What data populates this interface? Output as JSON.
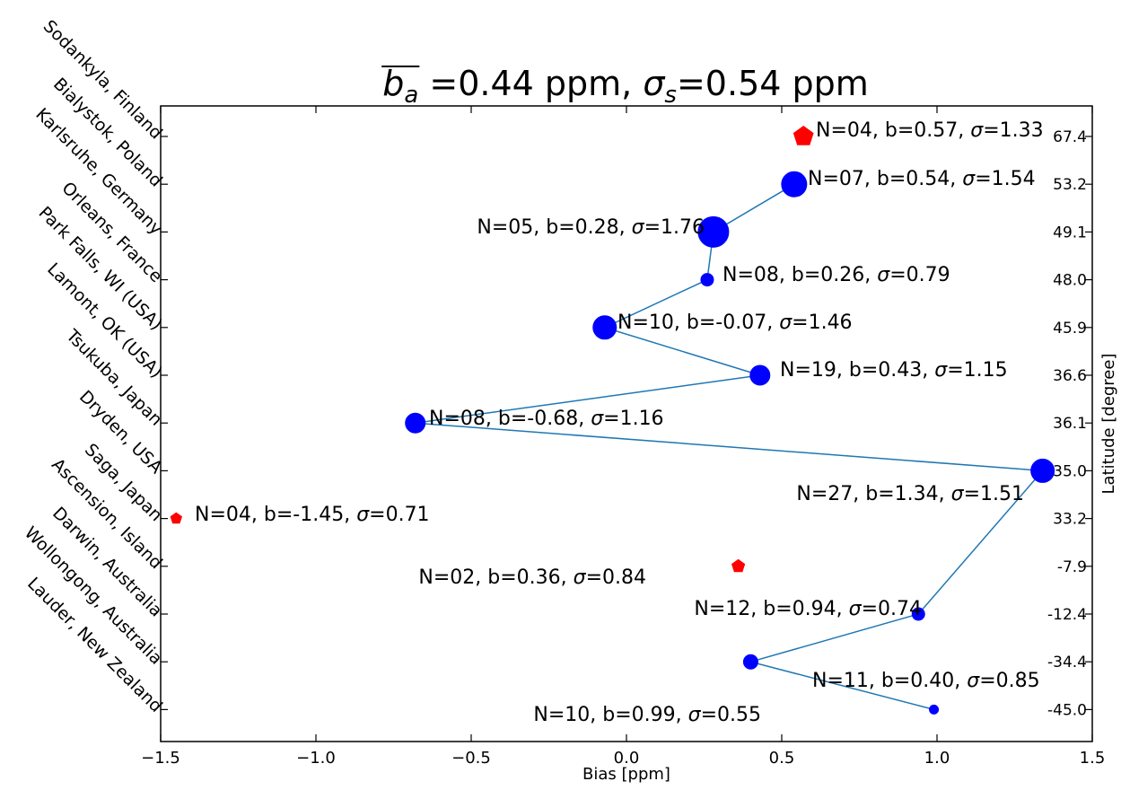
{
  "chart_data": {
    "type": "scatter",
    "title_prefix": "b",
    "title_subscript": "a",
    "title_mid": " =0.44 ppm, ",
    "title_sigma": "σ",
    "title_sigma_subscript": "s",
    "title_suffix": "=0.54 ppm",
    "xlabel": "Bias [ppm]",
    "ylabel": "Latitude [degree]",
    "xlim": [
      -1.5,
      1.5
    ],
    "x_ticks": [
      "−1.5",
      "−1.0",
      "−0.5",
      "0.0",
      "0.5",
      "1.0",
      "1.5"
    ],
    "x_tick_values": [
      -1.5,
      -1.0,
      -0.5,
      0.0,
      0.5,
      1.0,
      1.5
    ],
    "latitude_ticks": [
      "67.4",
      "53.2",
      "49.1",
      "48.0",
      "45.9",
      "36.6",
      "36.1",
      "35.0",
      "33.2",
      "-7.9",
      "-12.4",
      "-34.4",
      "-45.0"
    ],
    "site_labels": [
      "Sodankyla, Finland",
      "Bialystok, Poland",
      "Karlsruhe, Germany",
      "Orleans, France",
      "Park Falls, WI (USA)",
      "Lamont, OK (USA)",
      "Tsukuba, Japan",
      "Dryden, USA",
      "Saga, Japan",
      "Ascension, Island",
      "Darwin, Australia",
      "Wollongong, Australia",
      "Lauder, New Zealand"
    ],
    "colors": {
      "included": "#0000ff",
      "excluded": "#ff0000",
      "line": "#1f77b4"
    },
    "series": [
      {
        "marker": "circle",
        "color": "#0000ff",
        "connected": true,
        "points": [
          {
            "site": "Bialystok, Poland",
            "latitude": "53.2",
            "bias": 0.54,
            "label": "N=07, b=0.54, ",
            "sigma": "=1.54"
          },
          {
            "site": "Karlsruhe, Germany",
            "latitude": "49.1",
            "bias": 0.28,
            "label": "N=05, b=0.28, ",
            "sigma": "=1.76"
          },
          {
            "site": "Orleans, France",
            "latitude": "48.0",
            "bias": 0.26,
            "label": "N=08, b=0.26, ",
            "sigma": "=0.79"
          },
          {
            "site": "Park Falls, WI (USA)",
            "latitude": "45.9",
            "bias": -0.07,
            "label": "N=10, b=-0.07, ",
            "sigma": "=1.46"
          },
          {
            "site": "Lamont, OK (USA)",
            "latitude": "36.6",
            "bias": 0.43,
            "label": "N=19, b=0.43, ",
            "sigma": "=1.15"
          },
          {
            "site": "Tsukuba, Japan",
            "latitude": "36.1",
            "bias": -0.68,
            "label": "N=08, b=-0.68, ",
            "sigma": "=1.16"
          },
          {
            "site": "Dryden, USA",
            "latitude": "35.0",
            "bias": 1.34,
            "label": "N=27, b=1.34, ",
            "sigma": "=1.51"
          },
          {
            "site": "Darwin, Australia",
            "latitude": "-12.4",
            "bias": 0.94,
            "label": "N=12, b=0.94, ",
            "sigma": "=0.74"
          },
          {
            "site": "Wollongong, Australia",
            "latitude": "-34.4",
            "bias": 0.4,
            "label": "N=11, b=0.40, ",
            "sigma": "=0.85"
          },
          {
            "site": "Lauder, New Zealand",
            "latitude": "-45.0",
            "bias": 0.99,
            "label": "N=10, b=0.99, ",
            "sigma": "=0.55"
          }
        ]
      },
      {
        "marker": "pentagon",
        "color": "#ff0000",
        "connected": false,
        "points": [
          {
            "site": "Sodankyla, Finland",
            "latitude": "67.4",
            "bias": 0.57,
            "label": "N=04, b=0.57, ",
            "sigma": "=1.33"
          },
          {
            "site": "Saga, Japan",
            "latitude": "33.2",
            "bias": -1.45,
            "label": "N=04, b=-1.45, ",
            "sigma": "=0.71"
          },
          {
            "site": "Ascension, Island",
            "latitude": "-7.9",
            "bias": 0.36,
            "label": "N=02, b=0.36, ",
            "sigma": "=0.84"
          }
        ]
      }
    ]
  }
}
